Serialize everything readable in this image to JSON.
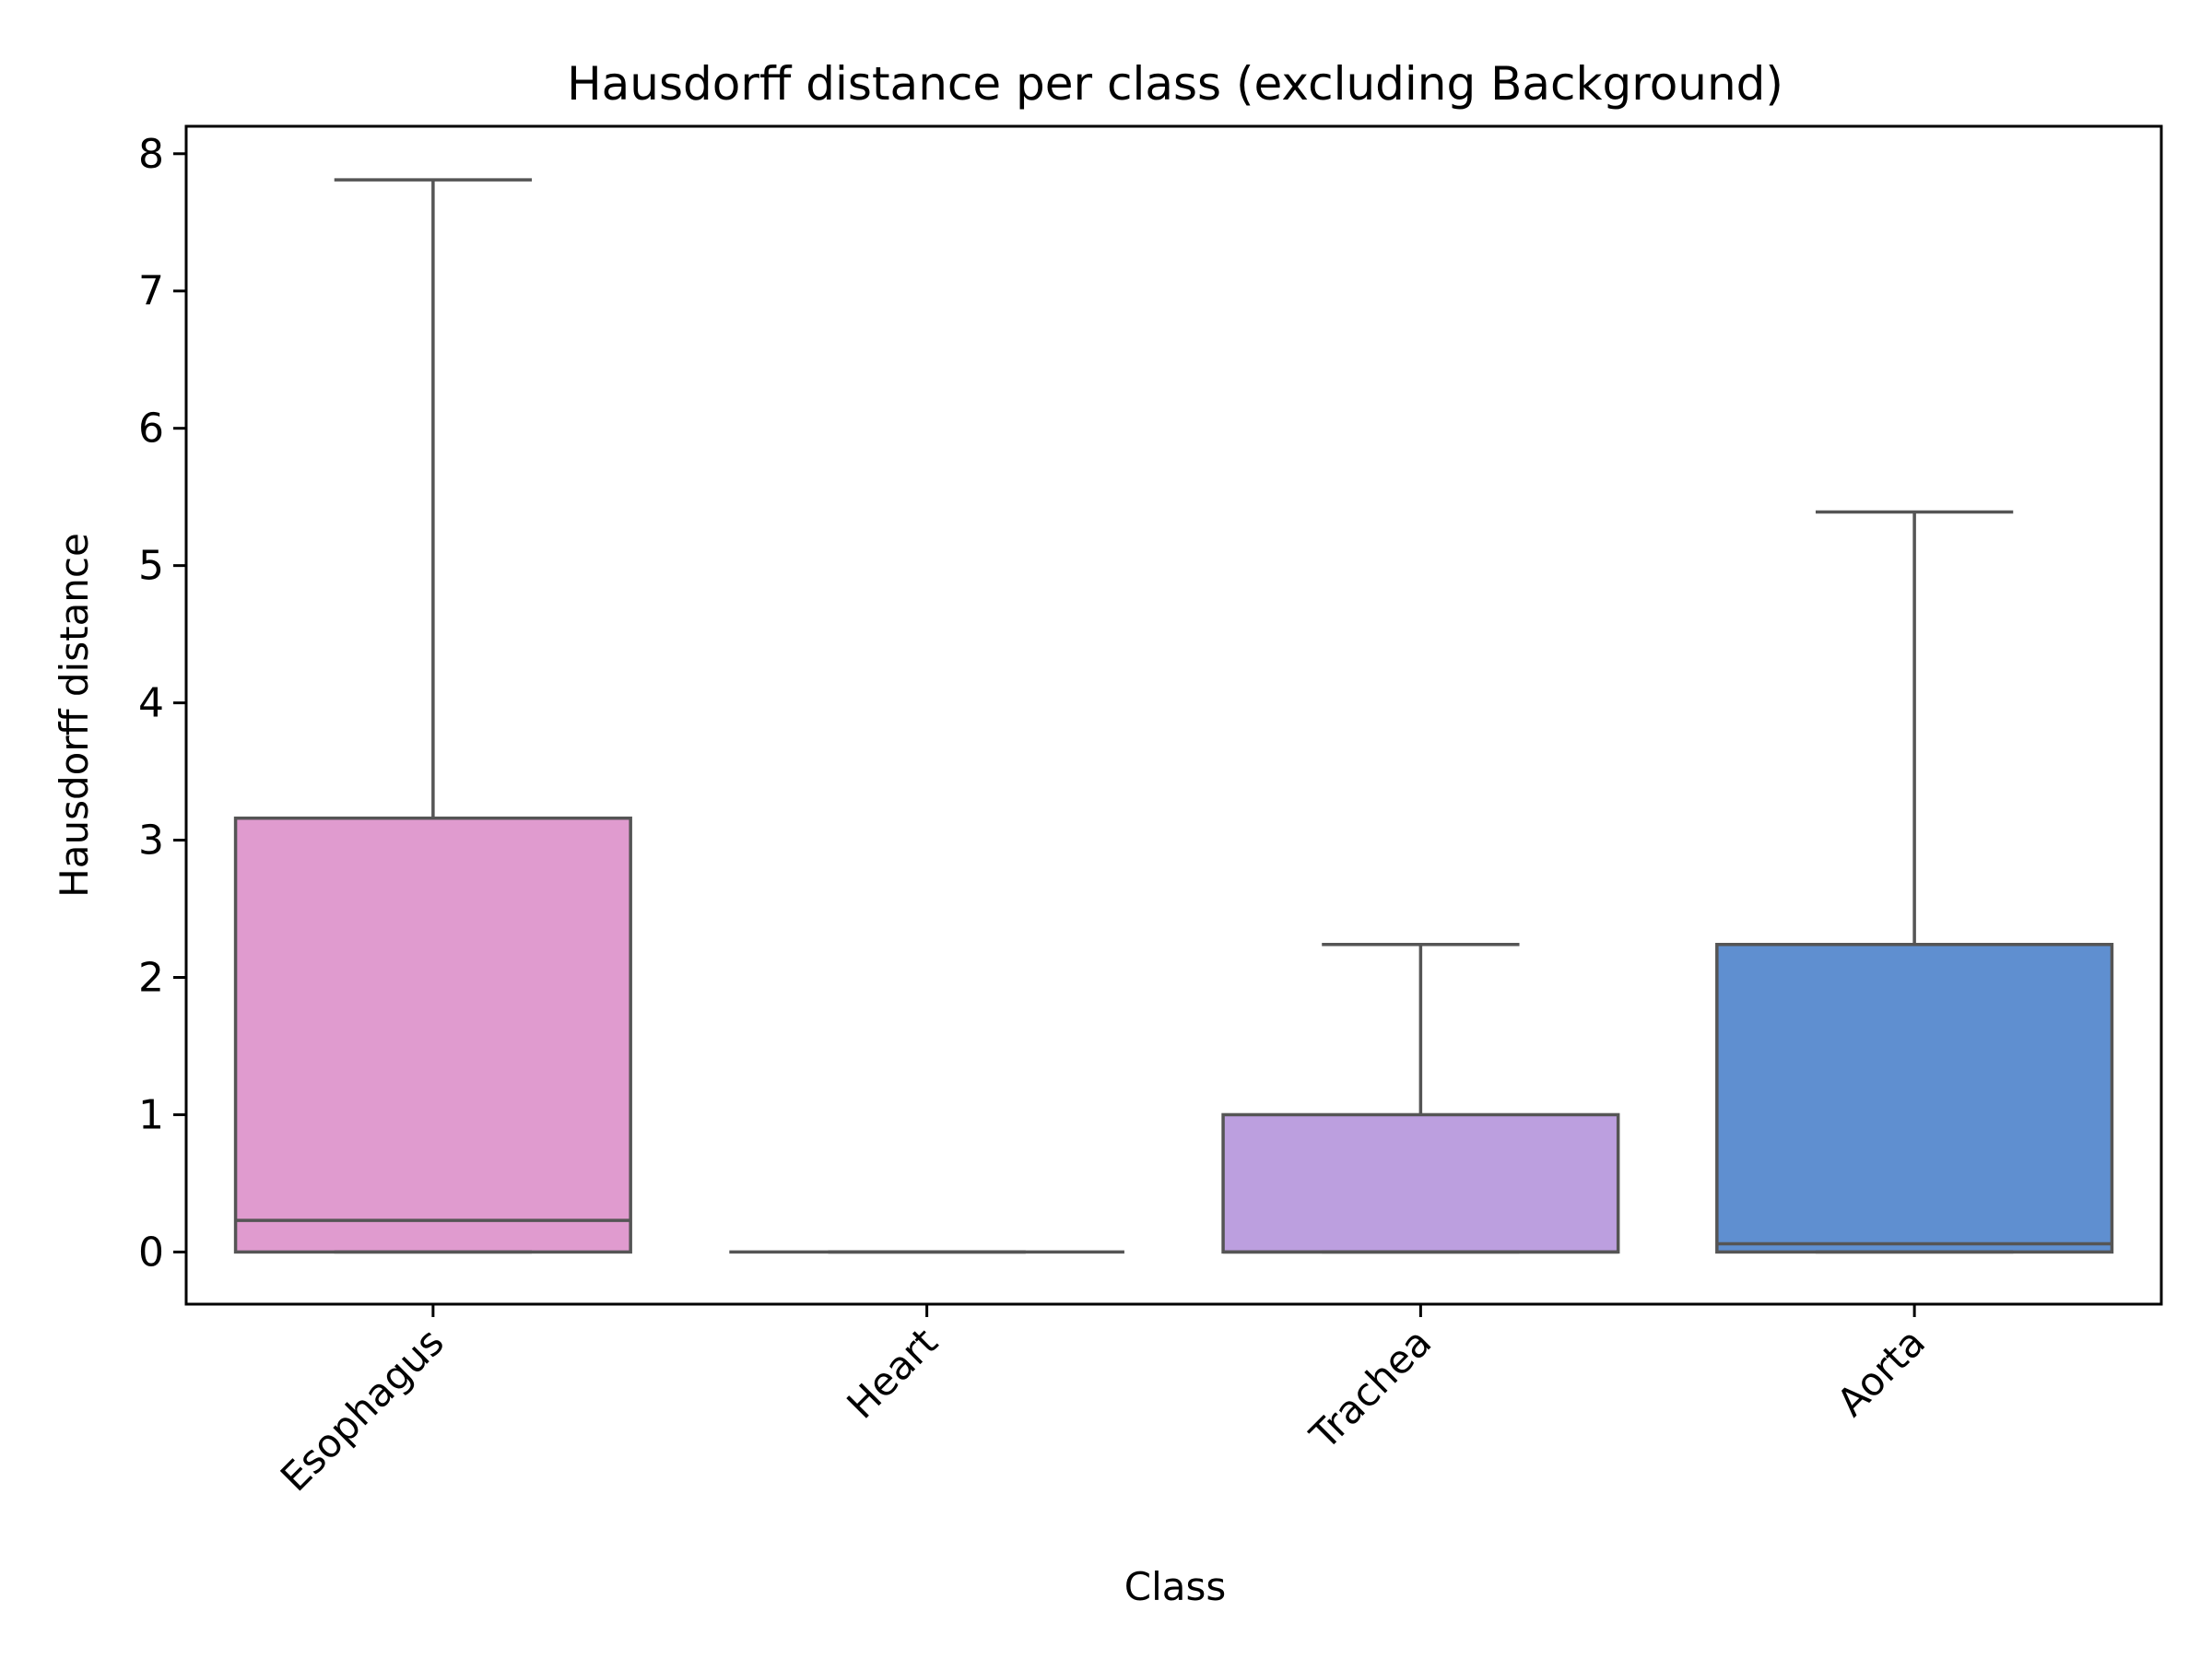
{
  "chart_data": {
    "type": "box",
    "title": "Hausdorff distance per class (excluding Background)",
    "xlabel": "Class",
    "ylabel": "Hausdorff distance",
    "ylim": [
      -0.38,
      8.2
    ],
    "yticks": [
      "0",
      "1",
      "2",
      "3",
      "4",
      "5",
      "6",
      "7",
      "8"
    ],
    "categories": [
      "Esophagus",
      "Heart",
      "Trachea",
      "Aorta"
    ],
    "grid": false,
    "legend": "none",
    "boxes": [
      {
        "category": "Esophagus",
        "whisker_low": 0.0,
        "q1": 0.0,
        "median": 0.23,
        "q3": 3.16,
        "whisker_high": 7.81,
        "color": "#e09bcf"
      },
      {
        "category": "Heart",
        "whisker_low": 0.0,
        "q1": 0.0,
        "median": 0.0,
        "q3": 0.0,
        "whisker_high": 0.0,
        "color": "#f7a7a0"
      },
      {
        "category": "Trachea",
        "whisker_low": 0.0,
        "q1": 0.0,
        "median": 0.0,
        "q3": 1.0,
        "whisker_high": 2.24,
        "color": "#bc9fdf"
      },
      {
        "category": "Aorta",
        "whisker_low": 0.0,
        "q1": 0.0,
        "median": 0.06,
        "q3": 2.24,
        "whisker_high": 5.39,
        "color": "#5f8fd0"
      }
    ],
    "line_color": "#555555"
  }
}
